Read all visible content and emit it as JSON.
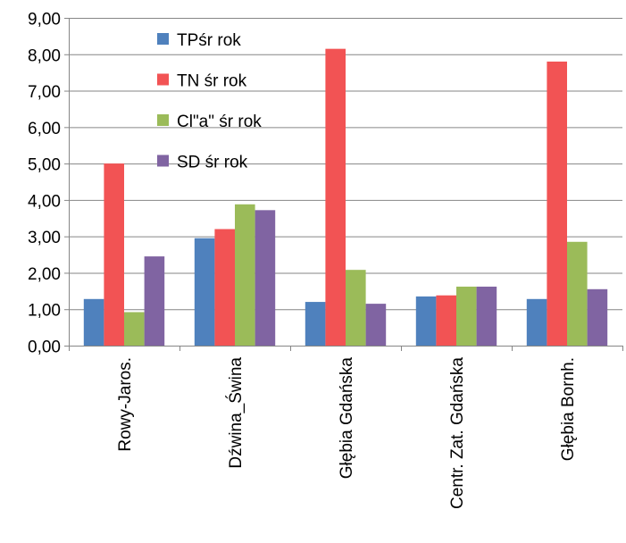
{
  "chart_data": {
    "type": "bar",
    "title": "",
    "xlabel": "",
    "ylabel": "",
    "ylim": [
      0,
      9
    ],
    "ytick_step": 1,
    "ytick_labels": [
      "0,00",
      "1,00",
      "2,00",
      "3,00",
      "4,00",
      "5,00",
      "6,00",
      "7,00",
      "8,00",
      "9,00"
    ],
    "grid": true,
    "legend_position": "top-left-inside",
    "categories": [
      "Rowy-Jaros.",
      "Dźwina_Świna",
      "Głębia Gdańska",
      "Centr. Zat. Gdańska",
      "Głębia Bornh."
    ],
    "series": [
      {
        "name": "TPśr rok",
        "color": "#4F81BD",
        "values": [
          1.28,
          2.95,
          1.2,
          1.35,
          1.28
        ]
      },
      {
        "name": "TN śr rok",
        "color": "#F25354",
        "values": [
          5.0,
          3.2,
          8.15,
          1.38,
          7.8
        ]
      },
      {
        "name": "Cl\"a\" śr rok",
        "color": "#9BBB59",
        "values": [
          0.92,
          3.88,
          2.08,
          1.62,
          2.85
        ]
      },
      {
        "name": "SD śr rok",
        "color": "#8064A2",
        "values": [
          2.45,
          3.72,
          1.15,
          1.62,
          1.55
        ]
      }
    ]
  }
}
